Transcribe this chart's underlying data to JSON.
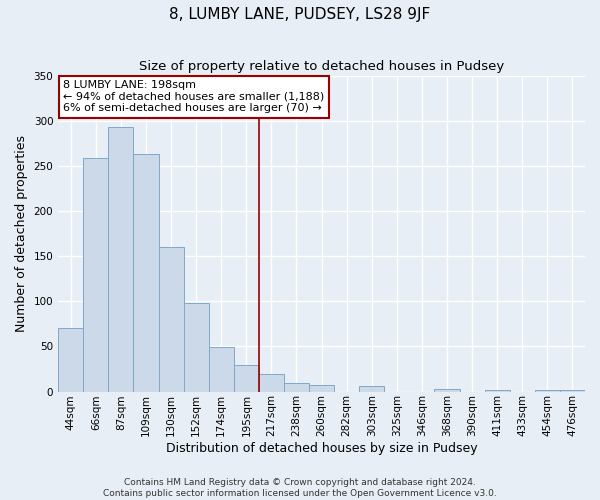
{
  "title": "8, LUMBY LANE, PUDSEY, LS28 9JF",
  "subtitle": "Size of property relative to detached houses in Pudsey",
  "xlabel": "Distribution of detached houses by size in Pudsey",
  "ylabel": "Number of detached properties",
  "bar_labels": [
    "44sqm",
    "66sqm",
    "87sqm",
    "109sqm",
    "130sqm",
    "152sqm",
    "174sqm",
    "195sqm",
    "217sqm",
    "238sqm",
    "260sqm",
    "282sqm",
    "303sqm",
    "325sqm",
    "346sqm",
    "368sqm",
    "390sqm",
    "411sqm",
    "433sqm",
    "454sqm",
    "476sqm"
  ],
  "bar_values": [
    70,
    259,
    293,
    263,
    160,
    98,
    49,
    29,
    19,
    10,
    7,
    0,
    6,
    0,
    0,
    3,
    0,
    2,
    0,
    2,
    2
  ],
  "bar_color": "#ccd9e8",
  "bar_edge_color": "#7fa8c8",
  "vline_x": 7.5,
  "vline_color": "#990000",
  "annotation_title": "8 LUMBY LANE: 198sqm",
  "annotation_line1": "← 94% of detached houses are smaller (1,188)",
  "annotation_line2": "6% of semi-detached houses are larger (70) →",
  "annotation_box_color": "#ffffff",
  "annotation_box_edge": "#990000",
  "ylim": [
    0,
    350
  ],
  "yticks": [
    0,
    50,
    100,
    150,
    200,
    250,
    300,
    350
  ],
  "footer1": "Contains HM Land Registry data © Crown copyright and database right 2024.",
  "footer2": "Contains public sector information licensed under the Open Government Licence v3.0.",
  "background_color": "#e8eef5",
  "plot_background_color": "#e8eef5",
  "grid_color": "#ffffff",
  "title_fontsize": 11,
  "subtitle_fontsize": 9.5,
  "axis_label_fontsize": 9,
  "tick_fontsize": 7.5,
  "footer_fontsize": 6.5
}
